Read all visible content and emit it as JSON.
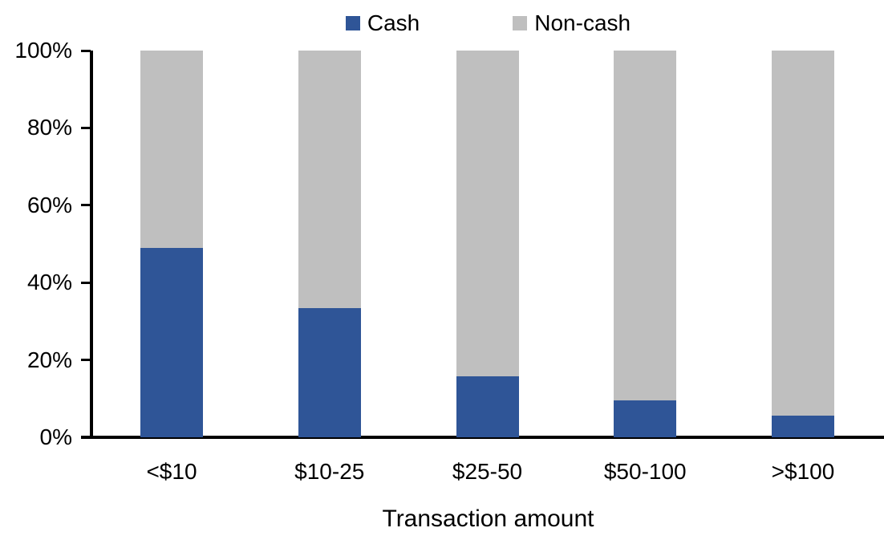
{
  "chart_data": {
    "type": "bar",
    "stacked": true,
    "orientation": "vertical",
    "title": "",
    "xlabel": "Transaction amount",
    "ylabel": "",
    "categories": [
      "<$10",
      "$10-25",
      "$25-50",
      "$50-100",
      ">$100"
    ],
    "series": [
      {
        "name": "Cash",
        "color": "#2F5597",
        "values": [
          49,
          33.5,
          15.8,
          9.5,
          5.6
        ]
      },
      {
        "name": "Non-cash",
        "color": "#BFBFBF",
        "values": [
          51,
          66.5,
          84.2,
          90.5,
          94.4
        ]
      }
    ],
    "ylim": [
      0,
      100
    ],
    "y_ticks": [
      "0%",
      "20%",
      "40%",
      "60%",
      "80%",
      "100%"
    ],
    "grid": false,
    "legend_position": "top-center",
    "axis_color": "#000000",
    "text_color": "#000000",
    "background_color": "#FFFFFF"
  }
}
